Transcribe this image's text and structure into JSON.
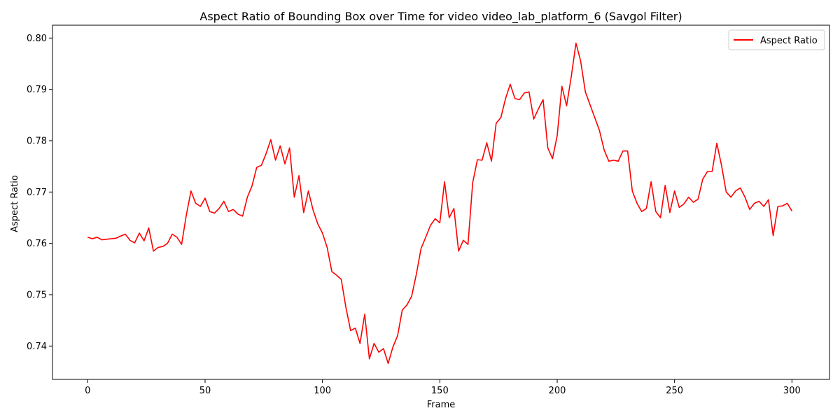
{
  "chart_data": {
    "type": "line",
    "title": "Aspect Ratio of Bounding Box over Time for video video_lab_platform_6 (Savgol Filter)",
    "xlabel": "Frame",
    "ylabel": "Aspect Ratio",
    "xlim": [
      -15,
      316
    ],
    "ylim": [
      0.7335,
      0.8025
    ],
    "xticks": [
      0,
      50,
      100,
      150,
      200,
      250,
      300
    ],
    "yticks": [
      0.74,
      0.75,
      0.76,
      0.77,
      0.78,
      0.79,
      0.8
    ],
    "legend_position": "top-right",
    "grid": false,
    "series": [
      {
        "name": "Aspect Ratio",
        "color": "#ff0000",
        "x": [
          0,
          2,
          4,
          6,
          8,
          10,
          12,
          14,
          16,
          18,
          20,
          22,
          24,
          26,
          28,
          30,
          32,
          34,
          36,
          38,
          40,
          42,
          44,
          46,
          48,
          50,
          52,
          54,
          56,
          58,
          60,
          62,
          64,
          66,
          68,
          70,
          72,
          74,
          76,
          78,
          80,
          82,
          84,
          86,
          88,
          90,
          92,
          94,
          96,
          98,
          100,
          102,
          104,
          106,
          108,
          110,
          112,
          114,
          116,
          118,
          120,
          122,
          124,
          126,
          128,
          130,
          132,
          134,
          136,
          138,
          140,
          142,
          144,
          146,
          148,
          150,
          152,
          154,
          156,
          158,
          160,
          162,
          164,
          166,
          168,
          170,
          172,
          174,
          176,
          178,
          180,
          182,
          184,
          186,
          188,
          190,
          192,
          194,
          196,
          198,
          200,
          202,
          204,
          206,
          208,
          210,
          212,
          214,
          216,
          218,
          220,
          222,
          224,
          226,
          228,
          230,
          232,
          234,
          236,
          238,
          240,
          242,
          244,
          246,
          248,
          250,
          252,
          254,
          256,
          258,
          260,
          262,
          264,
          266,
          268,
          270,
          272,
          274,
          276,
          278,
          280,
          282,
          284,
          286,
          288,
          290,
          292,
          294,
          296,
          298,
          300
        ],
        "y": [
          0.7612,
          0.7609,
          0.7612,
          0.7607,
          0.7608,
          0.7609,
          0.761,
          0.7614,
          0.7618,
          0.7606,
          0.7601,
          0.762,
          0.7605,
          0.763,
          0.7585,
          0.7592,
          0.7594,
          0.76,
          0.7618,
          0.7612,
          0.7598,
          0.7655,
          0.7702,
          0.7678,
          0.7672,
          0.7688,
          0.7662,
          0.7659,
          0.7668,
          0.7682,
          0.7662,
          0.7666,
          0.7657,
          0.7653,
          0.769,
          0.7712,
          0.7748,
          0.7752,
          0.7775,
          0.7802,
          0.7762,
          0.779,
          0.7755,
          0.7786,
          0.769,
          0.7732,
          0.766,
          0.7702,
          0.7665,
          0.7638,
          0.762,
          0.7592,
          0.7545,
          0.7538,
          0.753,
          0.7475,
          0.743,
          0.7435,
          0.7405,
          0.7462,
          0.7375,
          0.7405,
          0.7388,
          0.7395,
          0.7366,
          0.7398,
          0.742,
          0.747,
          0.748,
          0.7497,
          0.754,
          0.759,
          0.7612,
          0.7635,
          0.7648,
          0.764,
          0.772,
          0.765,
          0.7668,
          0.7585,
          0.7606,
          0.7598,
          0.7718,
          0.7763,
          0.7762,
          0.7796,
          0.776,
          0.7834,
          0.7845,
          0.7882,
          0.791,
          0.7882,
          0.788,
          0.7893,
          0.7895,
          0.7842,
          0.7862,
          0.788,
          0.7786,
          0.7765,
          0.781,
          0.7906,
          0.7868,
          0.7925,
          0.799,
          0.7955,
          0.7895,
          0.787,
          0.7845,
          0.782,
          0.7782,
          0.776,
          0.7762,
          0.776,
          0.778,
          0.778,
          0.7702,
          0.7678,
          0.7662,
          0.7668,
          0.772,
          0.7662,
          0.765,
          0.7713,
          0.766,
          0.7702,
          0.767,
          0.7677,
          0.769,
          0.768,
          0.7686,
          0.7725,
          0.774,
          0.774,
          0.7795,
          0.7752,
          0.77,
          0.769,
          0.7702,
          0.7708,
          0.769,
          0.7666,
          0.7678,
          0.7682,
          0.7672,
          0.7685,
          0.7615,
          0.7672,
          0.7673,
          0.7678,
          0.7663
        ]
      }
    ]
  }
}
